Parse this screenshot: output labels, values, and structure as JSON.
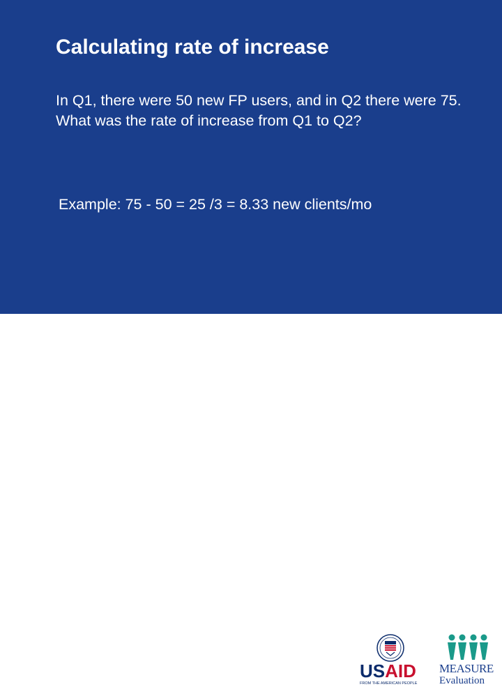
{
  "slide": {
    "title": "Calculating rate of increase",
    "question": "In Q1, there were 50 new FP users, and in Q2 there were 75. What was the rate of increase from Q1 to Q2?",
    "example": "Example: 75 - 50 = 25 /3 = 8.33 new clients/mo"
  },
  "footer": {
    "usaid": {
      "word_part1": "US",
      "word_part2": "AID",
      "tagline": "FROM THE AMERICAN PEOPLE",
      "seal_icon": "usaid-seal-icon"
    },
    "measure": {
      "word": "MEASURE",
      "subtitle": "Evaluation",
      "figures_icon": "people-figures-icon"
    }
  },
  "colors": {
    "panel_background": "#1a3e8c",
    "text": "#ffffff",
    "usaid_blue": "#0b2b6b",
    "usaid_red": "#c8102e",
    "measure_green": "#1a9a8a"
  }
}
